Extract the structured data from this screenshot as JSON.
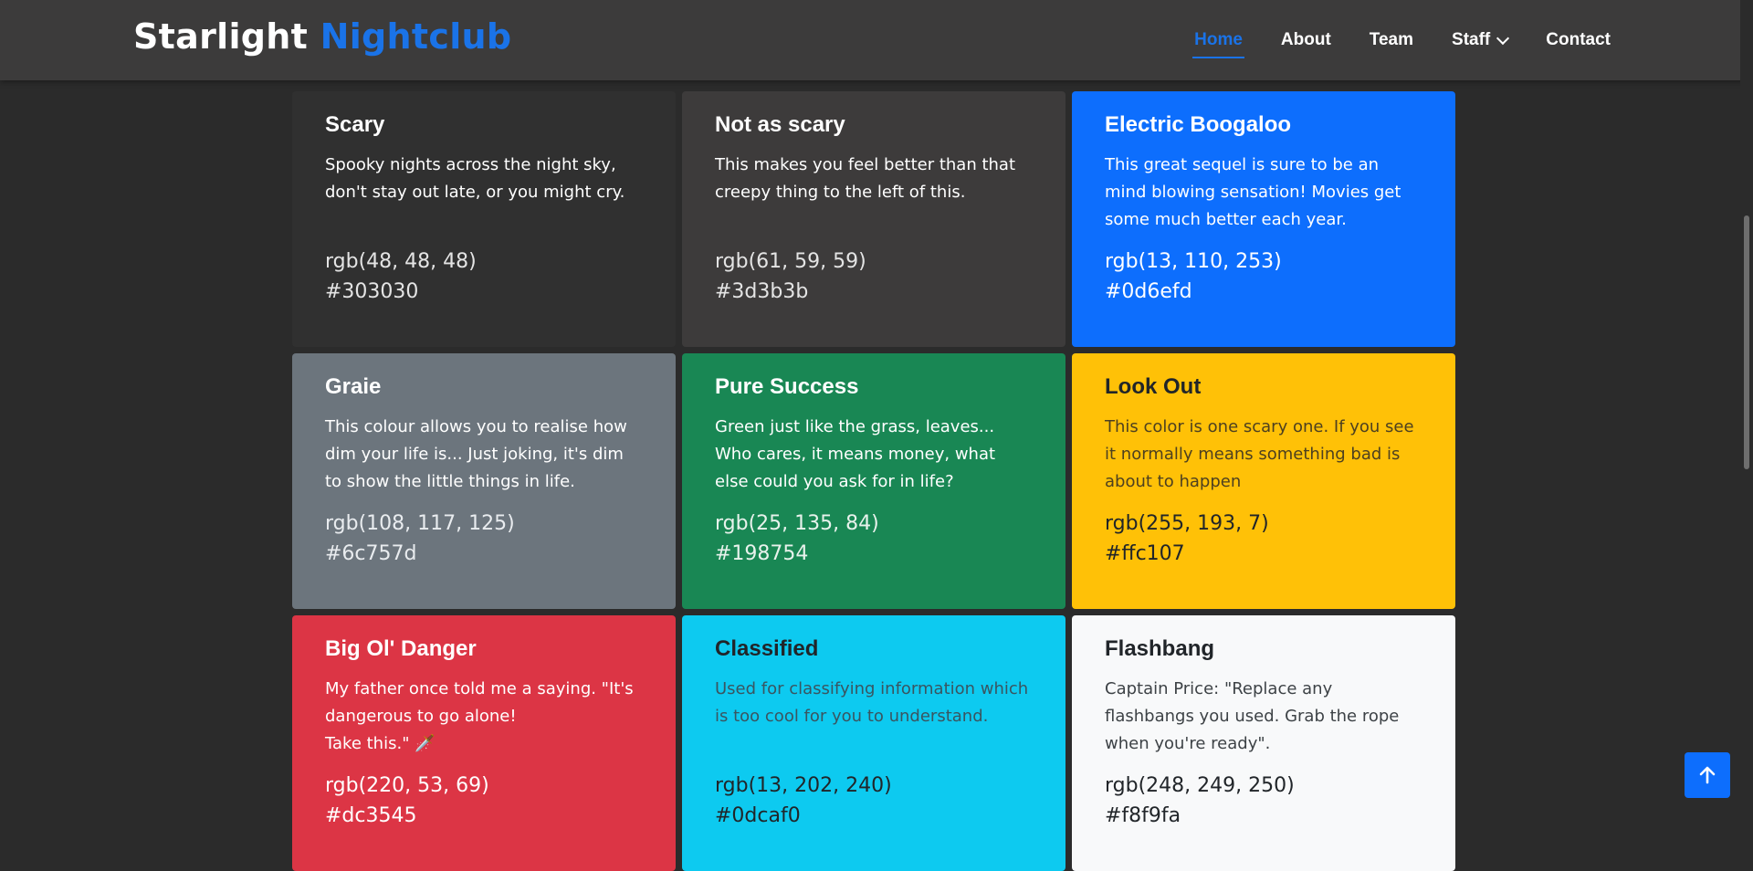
{
  "brand": {
    "primary": "Starlight",
    "accent": "Nightclub"
  },
  "nav": {
    "home": "Home",
    "about": "About",
    "team": "Team",
    "staff": "Staff",
    "contact": "Contact"
  },
  "cards": [
    {
      "title": "Scary",
      "text": "Spooky nights across the night sky, don't stay out late, or you might cry.",
      "rgb": "rgb(48, 48, 48)",
      "hex": "#303030"
    },
    {
      "title": "Not as scary",
      "text": "This makes you feel better than that creepy thing to the left of this.",
      "rgb": "rgb(61, 59, 59)",
      "hex": "#3d3b3b"
    },
    {
      "title": "Electric Boogaloo",
      "text": "This great sequel is sure to be an mind blowing sensation! Movies get some much better each year.",
      "rgb": "rgb(13, 110, 253)",
      "hex": "#0d6efd"
    },
    {
      "title": "Graie",
      "text": "This colour allows you to realise how dim your life is... Just joking, it's dim to show the little things in life.",
      "rgb": "rgb(108, 117, 125)",
      "hex": "#6c757d"
    },
    {
      "title": "Pure Success",
      "text": "Green just like the grass, leaves... Who cares, it means money, what else could you ask for in life?",
      "rgb": "rgb(25, 135, 84)",
      "hex": "#198754"
    },
    {
      "title": "Look Out",
      "text": "This color is one scary one. If you see it normally means something bad is about to happen",
      "rgb": "rgb(255, 193, 7)",
      "hex": "#ffc107"
    },
    {
      "title": "Big Ol' Danger",
      "text": "My father once told me a saying. \"It's dangerous to go alone!\nTake this.\" 🗡️",
      "rgb": "rgb(220, 53, 69)",
      "hex": "#dc3545"
    },
    {
      "title": "Classified",
      "text": "Used for classifying information which is too cool for you to understand.",
      "rgb": "rgb(13, 202, 240)",
      "hex": "#0dcaf0"
    },
    {
      "title": "Flashbang",
      "text": "Captain Price: \"Replace any flashbangs you used. Grab the rope when you're ready\".",
      "rgb": "rgb(248, 249, 250)",
      "hex": "#f8f9fa"
    }
  ],
  "icons": {
    "back_to_top": "arrow-up-icon",
    "staff_dropdown": "chevron-down-icon"
  },
  "colors": {
    "accent": "#1a73e8",
    "navbar_bg": "#3c3b3b",
    "page_bg": "#2b2b2b"
  }
}
